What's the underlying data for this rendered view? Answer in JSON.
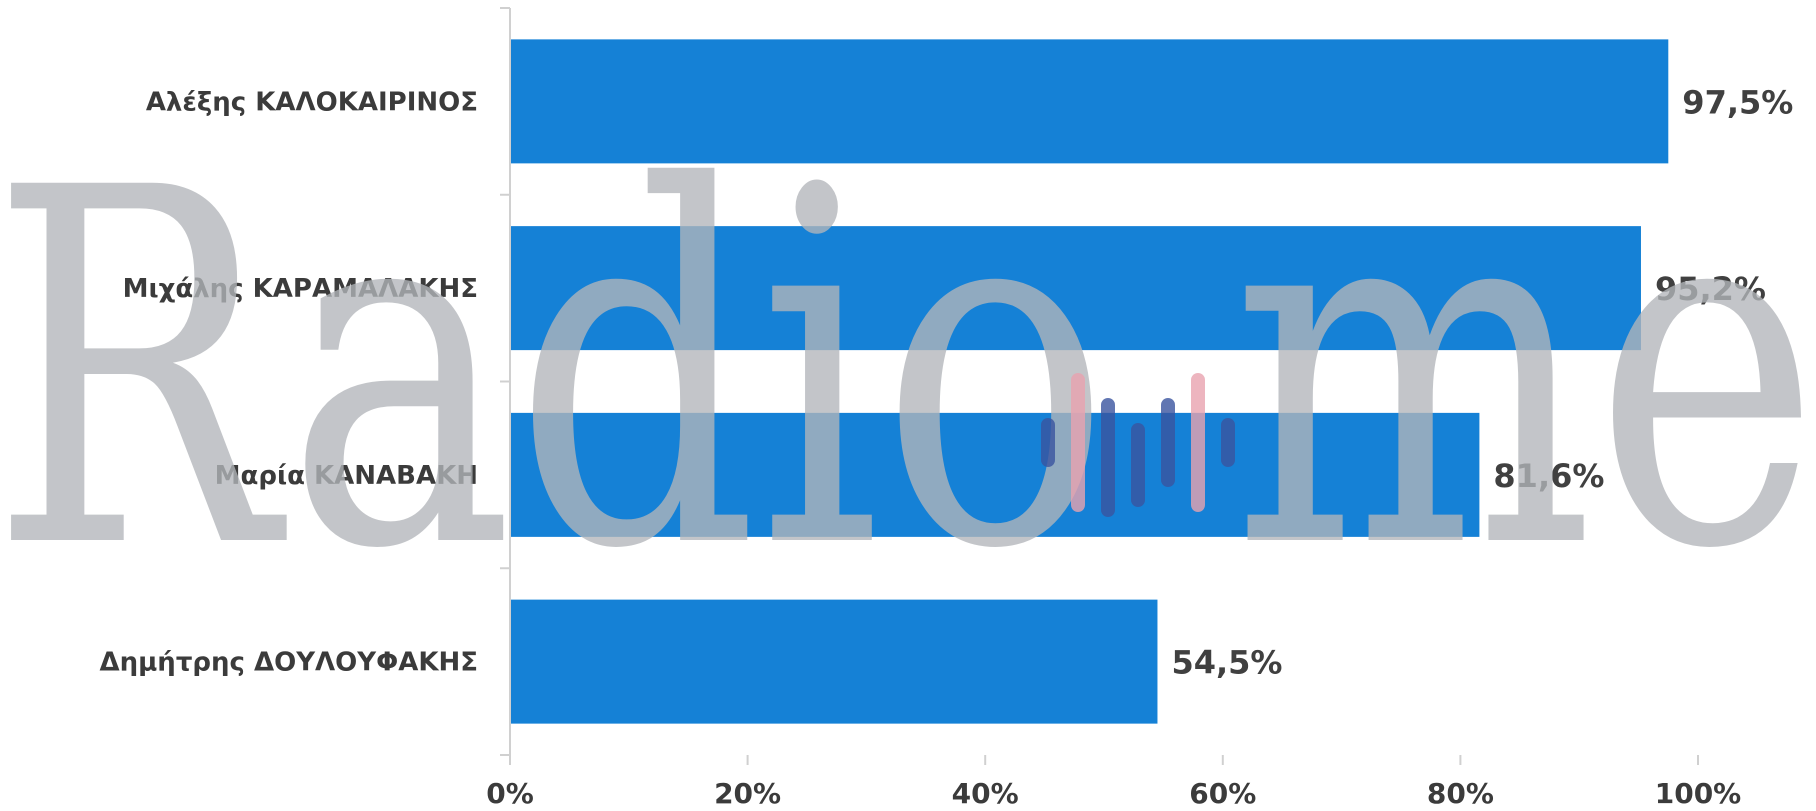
{
  "chart_data": {
    "type": "bar",
    "orientation": "horizontal",
    "categories": [
      "Αλέξης ΚΑΛΟΚΑΙΡΙΝΟΣ",
      "Μιχάλης ΚΑΡΑΜΑΛΑΚΗΣ",
      "Μαρία ΚΑΝΑΒΑΚΗ",
      "Δημήτρης ΔΟΥΛΟΥΦΑΚΗΣ"
    ],
    "values": [
      97.5,
      95.2,
      81.6,
      54.5
    ],
    "value_labels": [
      "97,5%",
      "95,2%",
      "81,6%",
      "54,5%"
    ],
    "xlim": [
      0,
      100
    ],
    "xticks": [
      0,
      20,
      40,
      60,
      80,
      100
    ],
    "xtick_labels": [
      "0%",
      "20%",
      "40%",
      "60%",
      "80%",
      "100%"
    ],
    "title": "",
    "xlabel": "",
    "ylabel": "",
    "grid": false,
    "legend": "none",
    "bar_color": "#1581d6"
  },
  "watermark": {
    "text": "Radio me",
    "color": "#b3b6ba",
    "equalizer_colors": [
      "#3a55a0",
      "#e9a3b0"
    ]
  }
}
